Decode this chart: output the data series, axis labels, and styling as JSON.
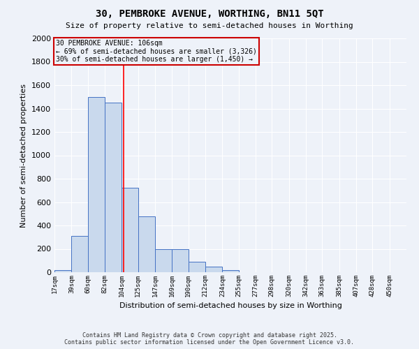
{
  "title_line1": "30, PEMBROKE AVENUE, WORTHING, BN11 5QT",
  "title_line2": "Size of property relative to semi-detached houses in Worthing",
  "xlabel": "Distribution of semi-detached houses by size in Worthing",
  "ylabel": "Number of semi-detached properties",
  "bar_left_edges": [
    17,
    39,
    60,
    82,
    104,
    125,
    147,
    169,
    190,
    212,
    234,
    255,
    277,
    298,
    320,
    342,
    363,
    385,
    407,
    428
  ],
  "bar_widths": [
    22,
    21,
    22,
    22,
    21,
    22,
    22,
    21,
    22,
    22,
    21,
    22,
    21,
    22,
    22,
    21,
    22,
    22,
    21,
    22
  ],
  "bar_heights": [
    20,
    310,
    1500,
    1450,
    720,
    480,
    195,
    195,
    90,
    50,
    20,
    0,
    0,
    0,
    0,
    0,
    0,
    0,
    0,
    0
  ],
  "tick_labels": [
    "17sqm",
    "39sqm",
    "60sqm",
    "82sqm",
    "104sqm",
    "125sqm",
    "147sqm",
    "169sqm",
    "190sqm",
    "212sqm",
    "234sqm",
    "255sqm",
    "277sqm",
    "298sqm",
    "320sqm",
    "342sqm",
    "363sqm",
    "385sqm",
    "407sqm",
    "428sqm",
    "450sqm"
  ],
  "tick_positions": [
    17,
    39,
    60,
    82,
    104,
    125,
    147,
    169,
    190,
    212,
    234,
    255,
    277,
    298,
    320,
    342,
    363,
    385,
    407,
    428,
    450
  ],
  "bar_color": "#c9d9ed",
  "bar_edge_color": "#4472c4",
  "background_color": "#eef2f9",
  "ylim": [
    0,
    2000
  ],
  "yticks": [
    0,
    200,
    400,
    600,
    800,
    1000,
    1200,
    1400,
    1600,
    1800,
    2000
  ],
  "red_line_x": 106,
  "annotation_title": "30 PEMBROKE AVENUE: 106sqm",
  "annotation_line1": "← 69% of semi-detached houses are smaller (3,326)",
  "annotation_line2": "30% of semi-detached houses are larger (1,450) →",
  "footer_line1": "Contains HM Land Registry data © Crown copyright and database right 2025.",
  "footer_line2": "Contains public sector information licensed under the Open Government Licence v3.0.",
  "grid_color": "#ffffff",
  "annotation_box_color": "#cc0000"
}
